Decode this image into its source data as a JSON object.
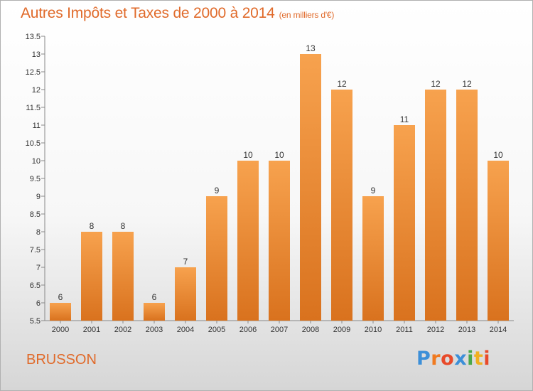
{
  "header": {
    "title": "Autres Impôts et Taxes de 2000 à 2014",
    "subtitle": "(en milliers d'€)"
  },
  "footer": {
    "place": "BRUSSON",
    "logo": "Proxiti",
    "logo_colors": [
      "#3c8fd8",
      "#f07a20",
      "#e84a2a",
      "#3c8fd8",
      "#4aa84a",
      "#f0b020",
      "#e84a2a"
    ]
  },
  "chart_data": {
    "type": "bar",
    "categories": [
      "2000",
      "2001",
      "2002",
      "2003",
      "2004",
      "2005",
      "2006",
      "2007",
      "2008",
      "2009",
      "2010",
      "2011",
      "2012",
      "2013",
      "2014"
    ],
    "values": [
      6,
      8,
      8,
      6,
      7,
      9,
      10,
      10,
      13,
      12,
      9,
      11,
      12,
      12,
      10
    ],
    "data_labels": [
      "6",
      "8",
      "8",
      "6",
      "7",
      "9",
      "10",
      "10",
      "13",
      "12",
      "9",
      "11",
      "12",
      "12",
      "10"
    ],
    "ylim": [
      5.5,
      13.5
    ],
    "yticks": [
      5.5,
      6,
      6.5,
      7,
      7.5,
      8,
      8.5,
      9,
      9.5,
      10,
      10.5,
      11,
      11.5,
      12,
      12.5,
      13,
      13.5
    ],
    "ytick_labels": [
      "5.5",
      "6",
      "6.5",
      "7",
      "7.5",
      "8",
      "8.5",
      "9",
      "9.5",
      "10",
      "10.5",
      "11",
      "11.5",
      "12",
      "12.5",
      "13",
      "13.5"
    ],
    "grid": "none",
    "legend": "none",
    "bar_color_top": "#f7a24e",
    "bar_color_bottom": "#d9721e"
  }
}
